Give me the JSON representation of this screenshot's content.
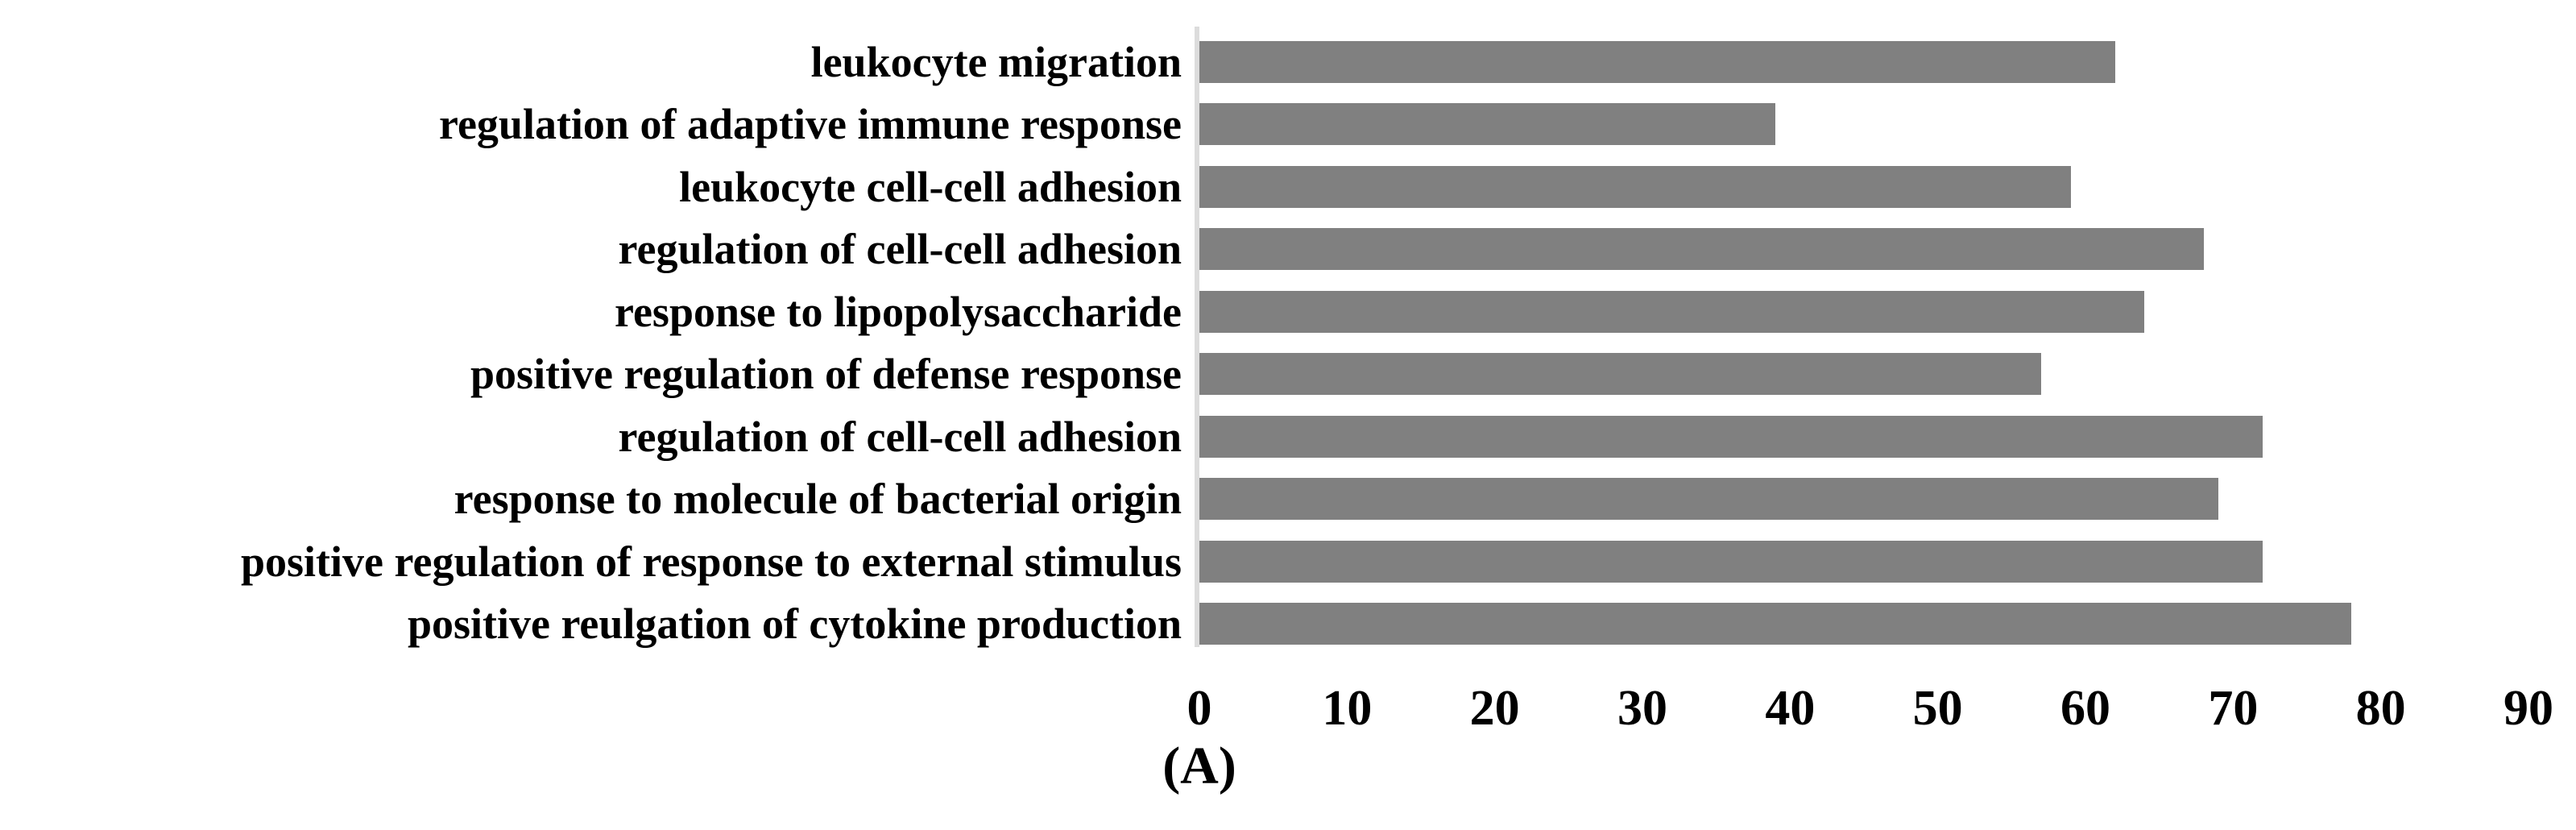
{
  "chart_data": {
    "type": "bar",
    "orientation": "horizontal",
    "title": "",
    "panel_label": "(A)",
    "categories": [
      "leukocyte migration",
      "regulation of adaptive immune response",
      "leukocyte cell-cell adhesion",
      "regulation of cell-cell adhesion",
      "response to lipopolysaccharide",
      "positive regulation of defense response",
      "regulation of cell-cell adhesion",
      "response to molecule of bacterial origin",
      "positive regulation of response to external stimulus",
      "positive reulgation of cytokine production"
    ],
    "values": [
      62,
      39,
      59,
      68,
      64,
      57,
      72,
      69,
      72,
      78
    ],
    "xlabel": "",
    "ylabel": "",
    "xlim": [
      0,
      90
    ],
    "xticks": [
      0,
      10,
      20,
      30,
      40,
      50,
      60,
      70,
      80,
      90
    ],
    "grid": false,
    "legend": false,
    "colors": {
      "bar": "#808080",
      "axis_line": "#DCDCDC",
      "background": "#FFFFFF",
      "text": "#000000"
    }
  }
}
